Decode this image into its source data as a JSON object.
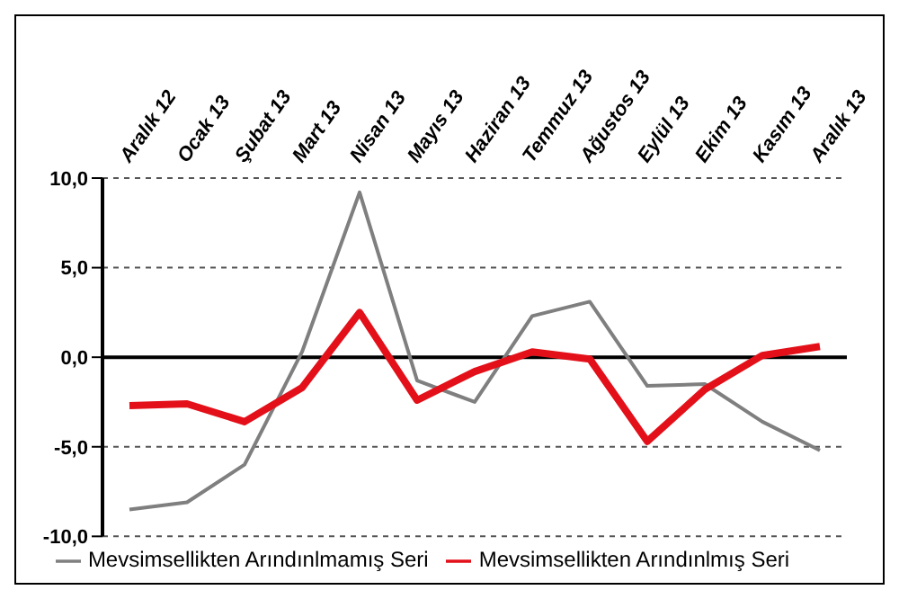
{
  "chart_data": {
    "type": "line",
    "categories": [
      "Aralık 12",
      "Ocak 13",
      "Şubat 13",
      "Mart 13",
      "Nisan 13",
      "Mayıs 13",
      "Haziran 13",
      "Temmuz 13",
      "Ağustos 13",
      "Eylül 13",
      "Ekim 13",
      "Kasım 13",
      "Aralık 13"
    ],
    "series": [
      {
        "name": "Mevsimsellikten Arındınlmamış Seri",
        "color": "#7f7f7f",
        "values": [
          -8.5,
          -8.1,
          -6.0,
          0.3,
          9.2,
          -1.3,
          -2.5,
          2.3,
          3.1,
          -1.6,
          -1.5,
          -3.6,
          -5.2
        ]
      },
      {
        "name": "Mevsimsellikten Arındınlmış Seri",
        "color": "#e3101a",
        "values": [
          -2.7,
          -2.6,
          -3.6,
          -1.7,
          2.5,
          -2.4,
          -0.8,
          0.3,
          -0.1,
          -4.7,
          -1.8,
          0.1,
          0.6
        ]
      }
    ],
    "ylim": [
      -10,
      10
    ],
    "yticks": [
      {
        "value": -10,
        "label": "-10,0"
      },
      {
        "value": -5,
        "label": "-5,0"
      },
      {
        "value": 0,
        "label": "0,0"
      },
      {
        "value": 5,
        "label": "5,0"
      },
      {
        "value": 10,
        "label": "10,0"
      }
    ],
    "grid": "y",
    "legend": "bottom",
    "marker": "none",
    "line_style": "solid"
  }
}
